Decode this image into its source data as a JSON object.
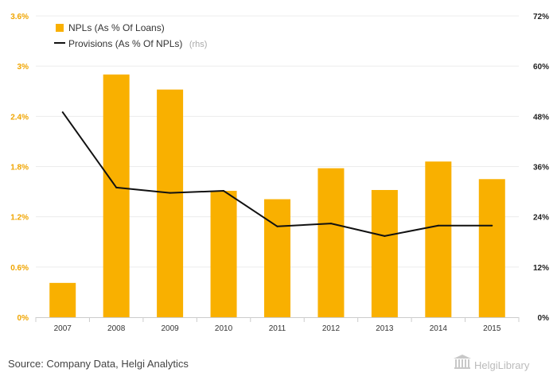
{
  "chart_data": {
    "type": "bar",
    "categories": [
      "2007",
      "2008",
      "2009",
      "2010",
      "2011",
      "2012",
      "2013",
      "2014",
      "2015"
    ],
    "series": [
      {
        "name": "NPLs (As % Of Loans)",
        "kind": "bar",
        "axis": "left",
        "values": [
          0.41,
          2.9,
          2.72,
          1.51,
          1.41,
          1.78,
          1.52,
          1.86,
          1.65
        ]
      },
      {
        "name": "Provisions (As % Of NPLs)",
        "name_suffix": "(rhs)",
        "kind": "line",
        "axis": "right",
        "values": [
          49.0,
          31.0,
          29.7,
          30.2,
          21.7,
          22.4,
          19.4,
          21.9,
          21.9
        ]
      }
    ],
    "y_left": {
      "lim": [
        0,
        3.6
      ],
      "ticks": [
        "0%",
        "0.6%",
        "1.2%",
        "1.8%",
        "2.4%",
        "3%",
        "3.6%"
      ]
    },
    "y_right": {
      "lim": [
        0,
        72
      ],
      "ticks": [
        "0%",
        "12%",
        "24%",
        "36%",
        "48%",
        "60%",
        "72%"
      ]
    },
    "grid": true,
    "legend_position": "top-left",
    "colors": {
      "bar": "#f9b000",
      "line": "#111111",
      "left_ticks": "#f0a500",
      "right_ticks": "#222222"
    }
  },
  "footer": {
    "source": "Source: Company Data, Helgi Analytics",
    "brand": "HelgiLibrary"
  }
}
